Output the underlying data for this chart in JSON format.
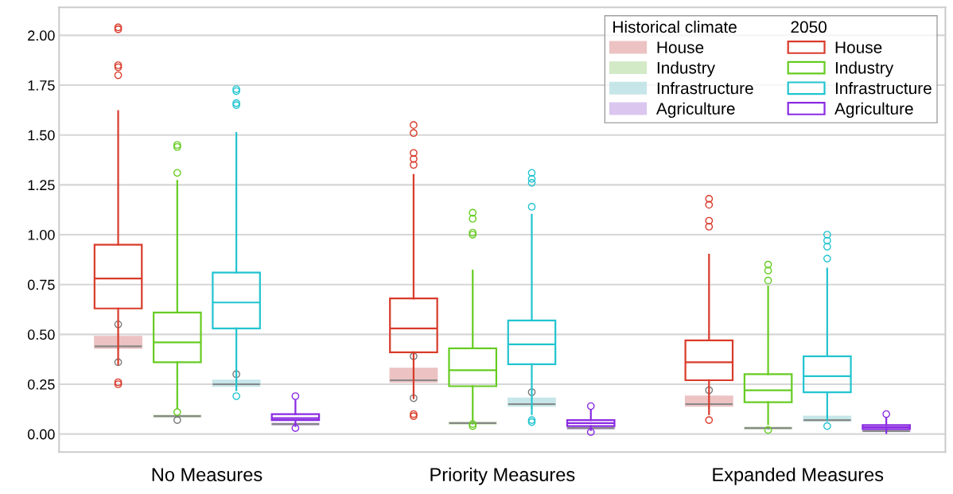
{
  "chart_data": {
    "type": "box",
    "categories": [
      "No Measures",
      "Priority Measures",
      "Expanded Measures"
    ],
    "legend_title": [
      "Historical climate",
      "2050"
    ],
    "series": [
      {
        "name": "House",
        "color": "#e8b4b4",
        "boxes": [
          {
            "low": 0.42,
            "q1": 0.43,
            "median": 0.44,
            "q3": 0.49,
            "high": 0.5,
            "outliers": [
              0.36,
              0.55
            ]
          },
          {
            "low": 0.25,
            "q1": 0.26,
            "median": 0.27,
            "q3": 0.33,
            "high": 0.34,
            "outliers": [
              0.18,
              0.39
            ]
          },
          {
            "low": 0.13,
            "q1": 0.14,
            "median": 0.15,
            "q3": 0.19,
            "high": 0.2,
            "outliers": [
              0.22
            ]
          }
        ]
      },
      {
        "name": "Industry",
        "color": "#c8e6b8",
        "boxes": [
          {
            "low": 0.085,
            "q1": 0.085,
            "median": 0.09,
            "q3": 0.095,
            "high": 0.095,
            "outliers": [
              0.07
            ]
          },
          {
            "low": 0.05,
            "q1": 0.05,
            "median": 0.055,
            "q3": 0.06,
            "high": 0.06
          },
          {
            "low": 0.025,
            "q1": 0.025,
            "median": 0.03,
            "q3": 0.035,
            "high": 0.035
          }
        ]
      },
      {
        "name": "Infrastructure",
        "color": "#b8e0e4",
        "boxes": [
          {
            "low": 0.23,
            "q1": 0.24,
            "median": 0.25,
            "q3": 0.27,
            "high": 0.29,
            "outliers": [
              0.3
            ]
          },
          {
            "low": 0.13,
            "q1": 0.14,
            "median": 0.15,
            "q3": 0.18,
            "high": 0.19,
            "outliers": [
              0.21
            ]
          },
          {
            "low": 0.065,
            "q1": 0.065,
            "median": 0.07,
            "q3": 0.09,
            "high": 0.09
          }
        ]
      },
      {
        "name": "Agriculture",
        "color": "#d2b8ec",
        "boxes": [
          {
            "low": 0.045,
            "q1": 0.045,
            "median": 0.05,
            "q3": 0.055,
            "high": 0.055
          },
          {
            "low": 0.025,
            "q1": 0.025,
            "median": 0.03,
            "q3": 0.035,
            "high": 0.035
          },
          {
            "low": 0.012,
            "q1": 0.012,
            "median": 0.015,
            "q3": 0.022,
            "high": 0.022
          }
        ]
      },
      {
        "name": "House",
        "color": "#d93b2b",
        "boxes": [
          {
            "low": 0.35,
            "q1": 0.63,
            "median": 0.78,
            "q3": 0.95,
            "high": 1.62,
            "outliers": [
              0.25,
              0.26,
              1.8,
              1.84,
              1.85,
              2.03,
              2.04
            ]
          },
          {
            "low": 0.18,
            "q1": 0.41,
            "median": 0.53,
            "q3": 0.68,
            "high": 1.3,
            "outliers": [
              0.09,
              0.1,
              1.35,
              1.38,
              1.41,
              1.51,
              1.55
            ]
          },
          {
            "low": 0.1,
            "q1": 0.27,
            "median": 0.36,
            "q3": 0.47,
            "high": 0.9,
            "outliers": [
              0.07,
              1.04,
              1.07,
              1.15,
              1.18
            ]
          }
        ]
      },
      {
        "name": "Industry",
        "color": "#66cc22",
        "boxes": [
          {
            "low": 0.13,
            "q1": 0.36,
            "median": 0.46,
            "q3": 0.61,
            "high": 1.27,
            "outliers": [
              0.11,
              1.31,
              1.44,
              1.45
            ]
          },
          {
            "low": 0.07,
            "q1": 0.24,
            "median": 0.32,
            "q3": 0.43,
            "high": 0.82,
            "outliers": [
              0.04,
              0.05,
              1.0,
              1.01,
              1.08,
              1.11
            ]
          },
          {
            "low": 0.05,
            "q1": 0.16,
            "median": 0.22,
            "q3": 0.3,
            "high": 0.74,
            "outliers": [
              0.02,
              0.77,
              0.82,
              0.85
            ]
          }
        ]
      },
      {
        "name": "Infrastructure",
        "color": "#22c4d0",
        "boxes": [
          {
            "low": 0.22,
            "q1": 0.53,
            "median": 0.66,
            "q3": 0.81,
            "high": 1.51,
            "outliers": [
              0.19,
              1.65,
              1.66,
              1.72,
              1.73
            ]
          },
          {
            "low": 0.1,
            "q1": 0.35,
            "median": 0.45,
            "q3": 0.57,
            "high": 1.1,
            "outliers": [
              0.06,
              0.07,
              1.14,
              1.26,
              1.28,
              1.31
            ]
          },
          {
            "low": 0.07,
            "q1": 0.21,
            "median": 0.29,
            "q3": 0.39,
            "high": 0.83,
            "outliers": [
              0.04,
              0.88,
              0.94,
              0.97,
              1.0
            ]
          }
        ]
      },
      {
        "name": "Agriculture",
        "color": "#8a2be2",
        "boxes": [
          {
            "low": 0.04,
            "q1": 0.07,
            "median": 0.08,
            "q3": 0.1,
            "high": 0.17,
            "outliers": [
              0.03,
              0.19
            ]
          },
          {
            "low": 0.02,
            "q1": 0.04,
            "median": 0.055,
            "q3": 0.07,
            "high": 0.12,
            "outliers": [
              0.01,
              0.14
            ]
          },
          {
            "low": 0.005,
            "q1": 0.025,
            "median": 0.035,
            "q3": 0.045,
            "high": 0.08,
            "outliers": [
              0.1
            ]
          }
        ]
      }
    ],
    "ylim": [
      -0.09,
      2.14
    ],
    "yticks": [
      {
        "value": 0,
        "label": "0.00"
      },
      {
        "value": 0.25,
        "label": "0.25"
      },
      {
        "value": 0.5,
        "label": "0.50"
      },
      {
        "value": 0.75,
        "label": "0.75"
      },
      {
        "value": 1.0,
        "label": "1.00"
      },
      {
        "value": 1.25,
        "label": "1.25"
      },
      {
        "value": 1.5,
        "label": "1.50"
      },
      {
        "value": 1.75,
        "label": "1.75"
      },
      {
        "value": 2.0,
        "label": "2.00"
      }
    ],
    "grid": "y",
    "legend": "top right"
  }
}
